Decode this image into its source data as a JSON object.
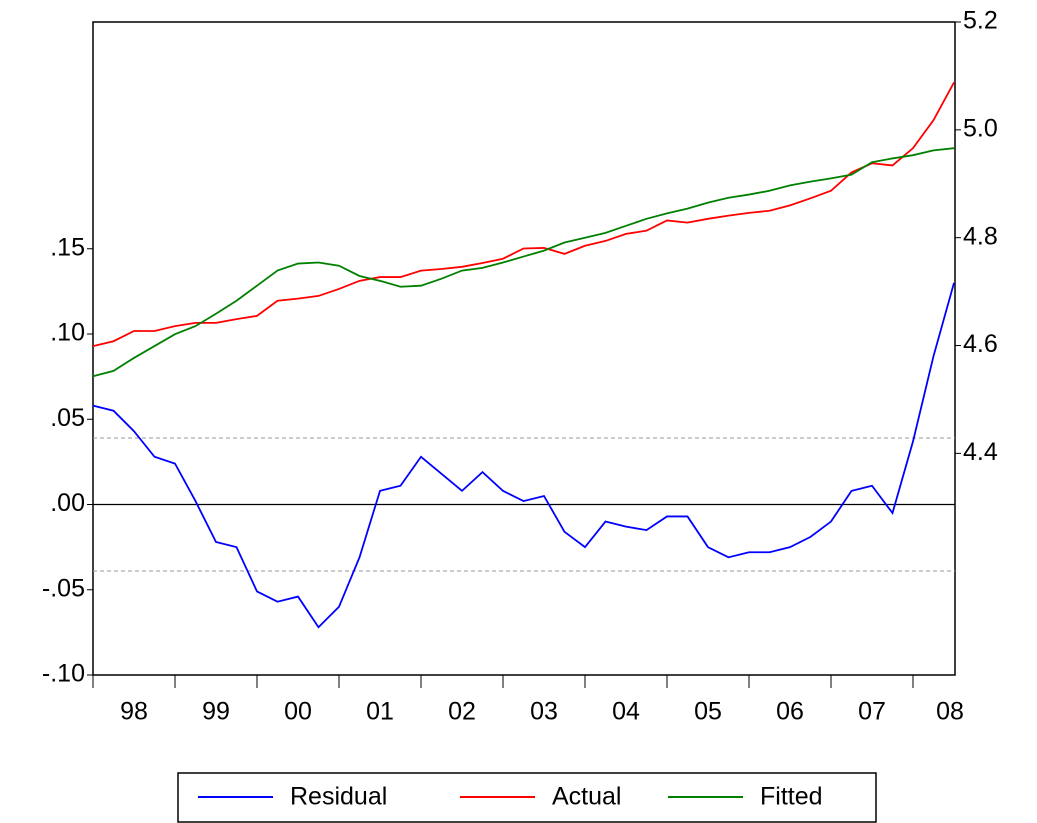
{
  "chart_data": {
    "type": "line",
    "categories": [
      "98",
      null,
      null,
      null,
      "99",
      null,
      null,
      null,
      "00",
      null,
      null,
      null,
      "01",
      null,
      null,
      null,
      "02",
      null,
      null,
      null,
      "03",
      null,
      null,
      null,
      "04",
      null,
      null,
      null,
      "05",
      null,
      null,
      null,
      "06",
      null,
      null,
      null,
      "07",
      null,
      null,
      null,
      "08",
      null,
      null
    ],
    "series": [
      {
        "name": "Residual",
        "color": "#0000ff",
        "axis": "y",
        "values": [
          0.058,
          0.055,
          0.043,
          0.028,
          0.024,
          0.002,
          -0.022,
          -0.025,
          -0.051,
          -0.057,
          -0.054,
          -0.072,
          -0.06,
          -0.031,
          0.008,
          0.011,
          0.028,
          0.018,
          0.008,
          0.019,
          0.008,
          0.002,
          0.005,
          -0.016,
          -0.025,
          -0.01,
          -0.013,
          -0.015,
          -0.007,
          -0.007,
          -0.025,
          -0.031,
          -0.028,
          -0.028,
          -0.025,
          -0.019,
          -0.01,
          0.008,
          0.011,
          -0.005,
          0.037,
          0.087,
          0.13
        ]
      },
      {
        "name": "Actual",
        "color": "#ff0000",
        "axis": "y2",
        "values": [
          4.599,
          4.608,
          4.627,
          4.627,
          4.636,
          4.642,
          4.642,
          4.649,
          4.655,
          4.683,
          4.687,
          4.692,
          4.705,
          4.72,
          4.727,
          4.727,
          4.739,
          4.742,
          4.746,
          4.753,
          4.761,
          4.78,
          4.781,
          4.77,
          4.785,
          4.794,
          4.807,
          4.813,
          4.832,
          4.828,
          4.835,
          4.841,
          4.846,
          4.85,
          4.86,
          4.873,
          4.887,
          4.921,
          4.938,
          4.934,
          4.966,
          5.018,
          5.088
        ]
      },
      {
        "name": "Fitted",
        "color": "#008000",
        "axis": "y2",
        "values": [
          4.543,
          4.553,
          4.577,
          4.599,
          4.621,
          4.636,
          4.659,
          4.683,
          4.711,
          4.739,
          4.752,
          4.754,
          4.748,
          4.729,
          4.72,
          4.709,
          4.711,
          4.724,
          4.739,
          4.744,
          4.754,
          4.765,
          4.776,
          4.791,
          4.8,
          4.809,
          4.822,
          4.835,
          4.845,
          4.854,
          4.865,
          4.874,
          4.88,
          4.887,
          4.897,
          4.904,
          4.91,
          4.917,
          4.94,
          4.947,
          4.953,
          4.962,
          4.966
        ]
      }
    ],
    "ylim": [
      -0.1,
      0.283
    ],
    "yticks": [
      {
        "value": -0.1,
        "label": "-.10"
      },
      {
        "value": -0.05,
        "label": "-.05"
      },
      {
        "value": 0,
        "label": ".00"
      },
      {
        "value": 0.05,
        "label": ".05"
      },
      {
        "value": 0.1,
        "label": ".10"
      },
      {
        "value": 0.15,
        "label": ".15"
      }
    ],
    "y2lim": [
      3.989,
      5.2
    ],
    "y2ticks": [
      4.4,
      4.6,
      4.8,
      {
        "value": 5.0,
        "label": "5.0"
      },
      5.2
    ],
    "reference_lines": [
      0.039,
      -0.039
    ],
    "legend": "bottom"
  }
}
